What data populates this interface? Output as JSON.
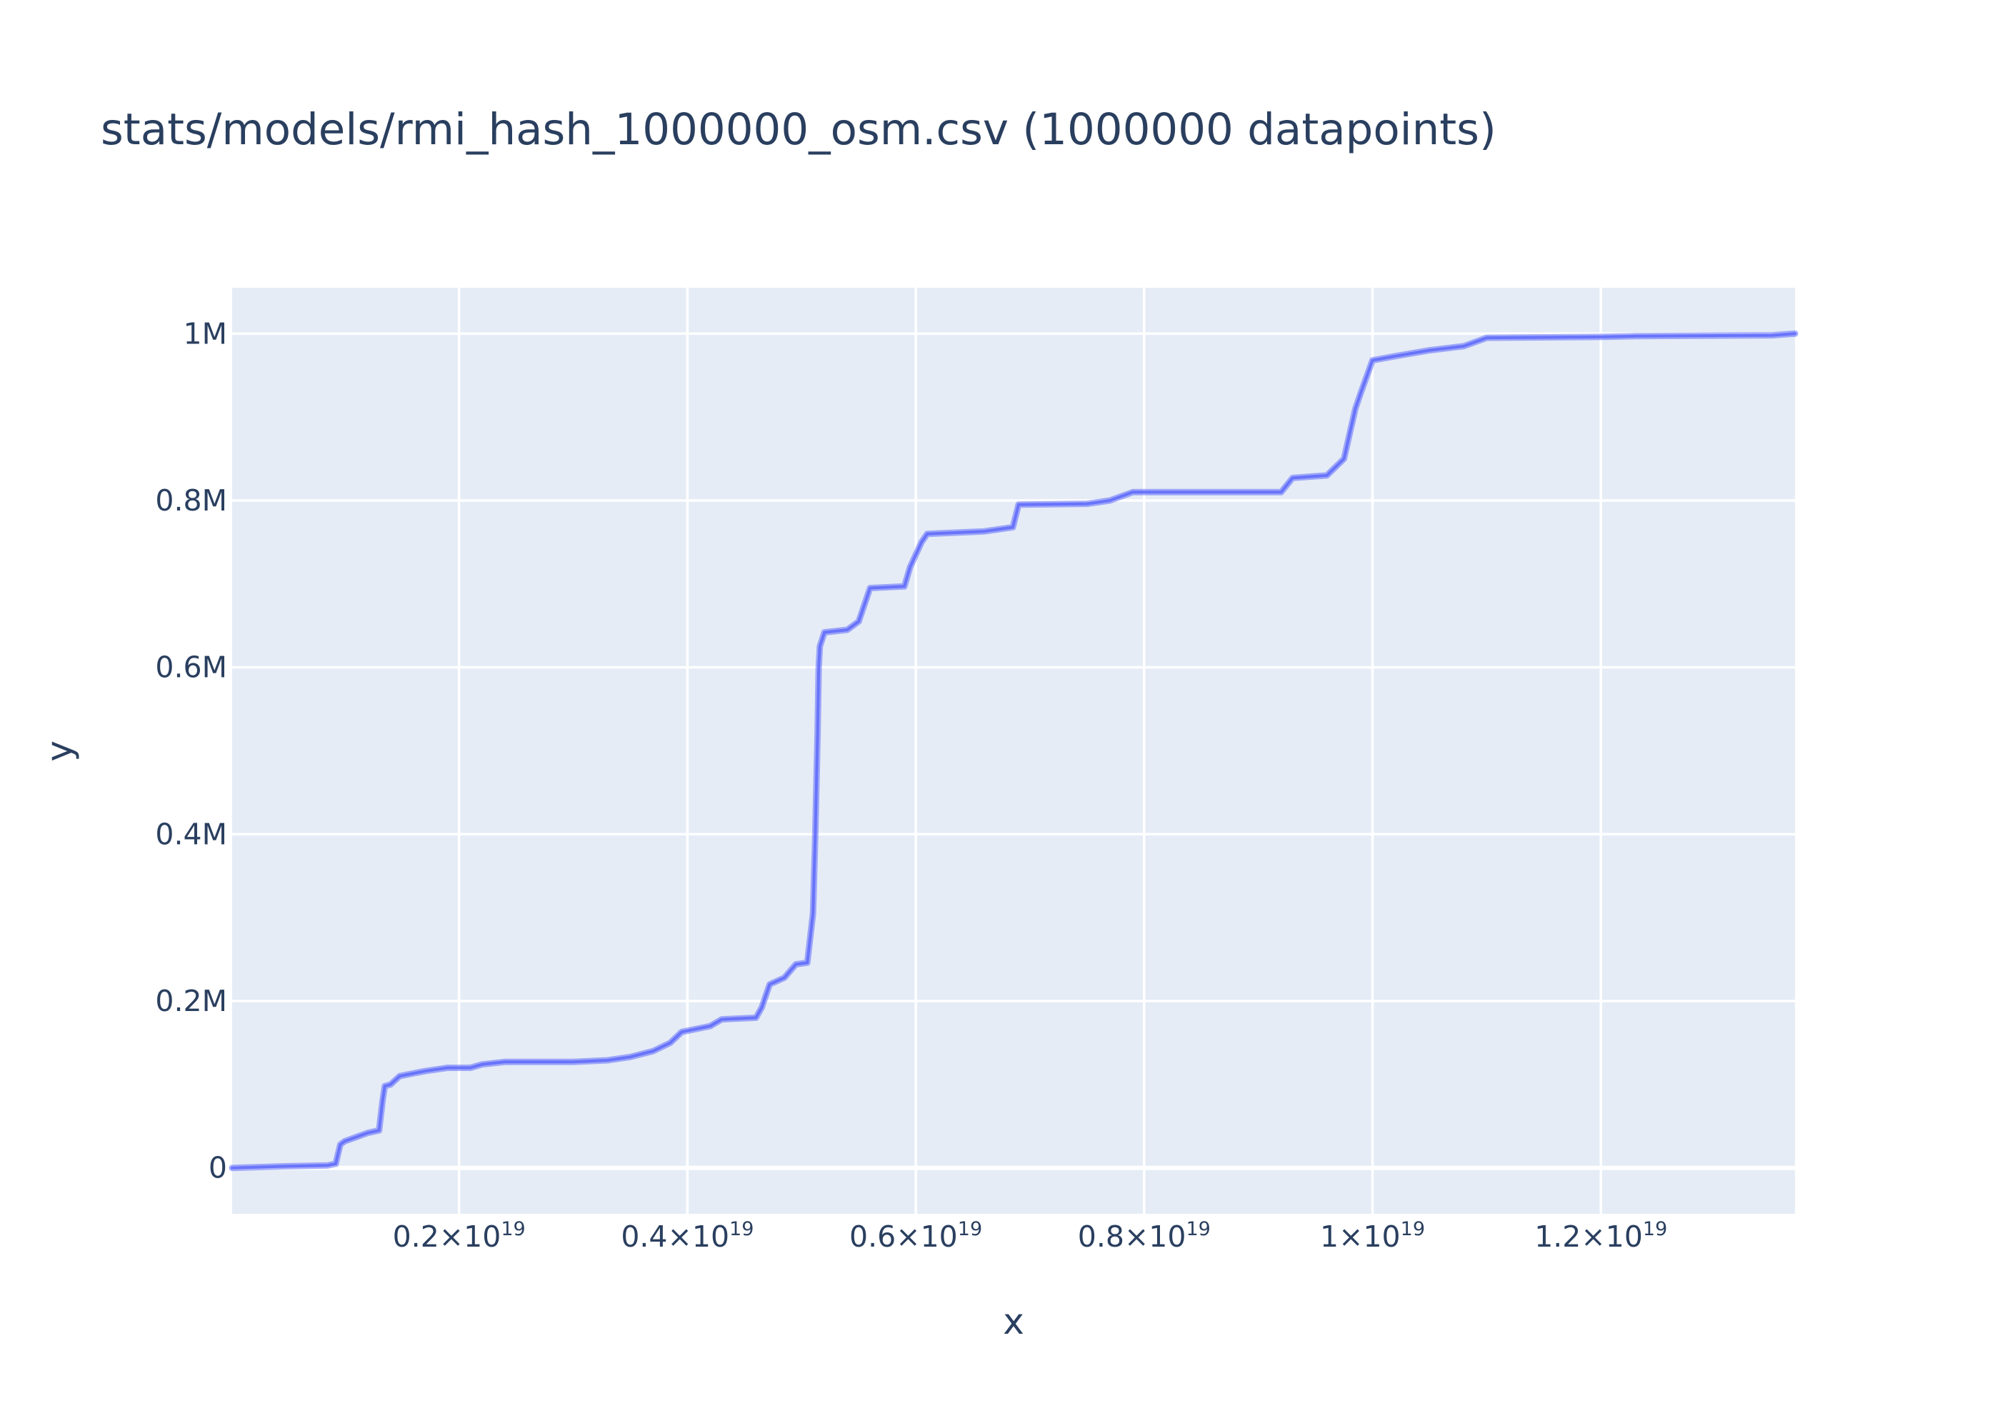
{
  "chart_data": {
    "type": "scatter",
    "title": "stats/models/rmi_hash_1000000_osm.csv (1000000 datapoints)",
    "xlabel": "x",
    "ylabel": "y",
    "xlim": [
      1.3e+16,
      1.37e+19
    ],
    "ylim": [
      -55000,
      1055000
    ],
    "grid": true,
    "background": "#e5ecf6",
    "marker_color": "#636efa",
    "x_ticks": [
      {
        "value": 2e+18,
        "mantissa": "0.2×10",
        "exp": "19"
      },
      {
        "value": 4e+18,
        "mantissa": "0.4×10",
        "exp": "19"
      },
      {
        "value": 6e+18,
        "mantissa": "0.6×10",
        "exp": "19"
      },
      {
        "value": 8e+18,
        "mantissa": "0.8×10",
        "exp": "19"
      },
      {
        "value": 1e+19,
        "mantissa": "1×10",
        "exp": "19"
      },
      {
        "value": 1.2e+19,
        "mantissa": "1.2×10",
        "exp": "19"
      }
    ],
    "y_ticks": [
      {
        "value": 0,
        "label": "0"
      },
      {
        "value": 200000,
        "label": "0.2M"
      },
      {
        "value": 400000,
        "label": "0.4M"
      },
      {
        "value": 600000,
        "label": "0.6M"
      },
      {
        "value": 800000,
        "label": "0.8M"
      },
      {
        "value": 1000000,
        "label": "1M"
      }
    ],
    "series": [
      {
        "x": [
          1.3e+16,
          5e+17,
          8.5e+17,
          9.2e+17,
          9.6e+17,
          1e+18,
          1.1e+18,
          1.2e+18,
          1.3e+18,
          1.33e+18,
          1.35e+18,
          1.4e+18,
          1.48e+18,
          1.55e+18,
          1.7e+18,
          1.9e+18,
          2.1e+18,
          2.2e+18,
          2.4e+18,
          2.6e+18,
          3e+18,
          3.3e+18,
          3.5e+18,
          3.7e+18,
          3.85e+18,
          3.95e+18,
          4.2e+18,
          4.3e+18,
          4.6e+18,
          4.65e+18,
          4.72e+18,
          4.85e+18,
          4.95e+18,
          5.05e+18,
          5.1e+18,
          5.12e+18,
          5.14e+18,
          5.15e+18,
          5.16e+18,
          5.2e+18,
          5.4e+18,
          5.5e+18,
          5.6e+18,
          5.9e+18,
          5.95e+18,
          6.05e+18,
          6.1e+18,
          6.6e+18,
          6.85e+18,
          6.9e+18,
          7.5e+18,
          7.7e+18,
          7.9e+18,
          9.2e+18,
          9.3e+18,
          9.6e+18,
          9.75e+18,
          9.8e+18,
          9.85e+18,
          9.9e+18,
          1e+19,
          1.02e+19,
          1.05e+19,
          1.08e+19,
          1.1e+19,
          1.2e+19,
          1.23e+19,
          1.35e+19,
          1.37e+19
        ],
        "y": [
          0,
          2000,
          3000,
          5000,
          28000,
          32000,
          37000,
          42000,
          45000,
          80000,
          98000,
          100000,
          110000,
          112000,
          116000,
          120000,
          120000,
          124000,
          127000,
          127000,
          127000,
          129000,
          133000,
          140000,
          150000,
          163000,
          170000,
          178000,
          180000,
          192000,
          220000,
          228000,
          244000,
          246000,
          305000,
          400000,
          520000,
          600000,
          625000,
          642000,
          645000,
          655000,
          695000,
          697000,
          720000,
          750000,
          760000,
          763000,
          768000,
          795000,
          796000,
          800000,
          810000,
          810000,
          827000,
          830000,
          850000,
          880000,
          910000,
          930000,
          968000,
          973000,
          980000,
          985000,
          995000,
          996000,
          997000,
          998000,
          1000000
        ]
      }
    ]
  }
}
